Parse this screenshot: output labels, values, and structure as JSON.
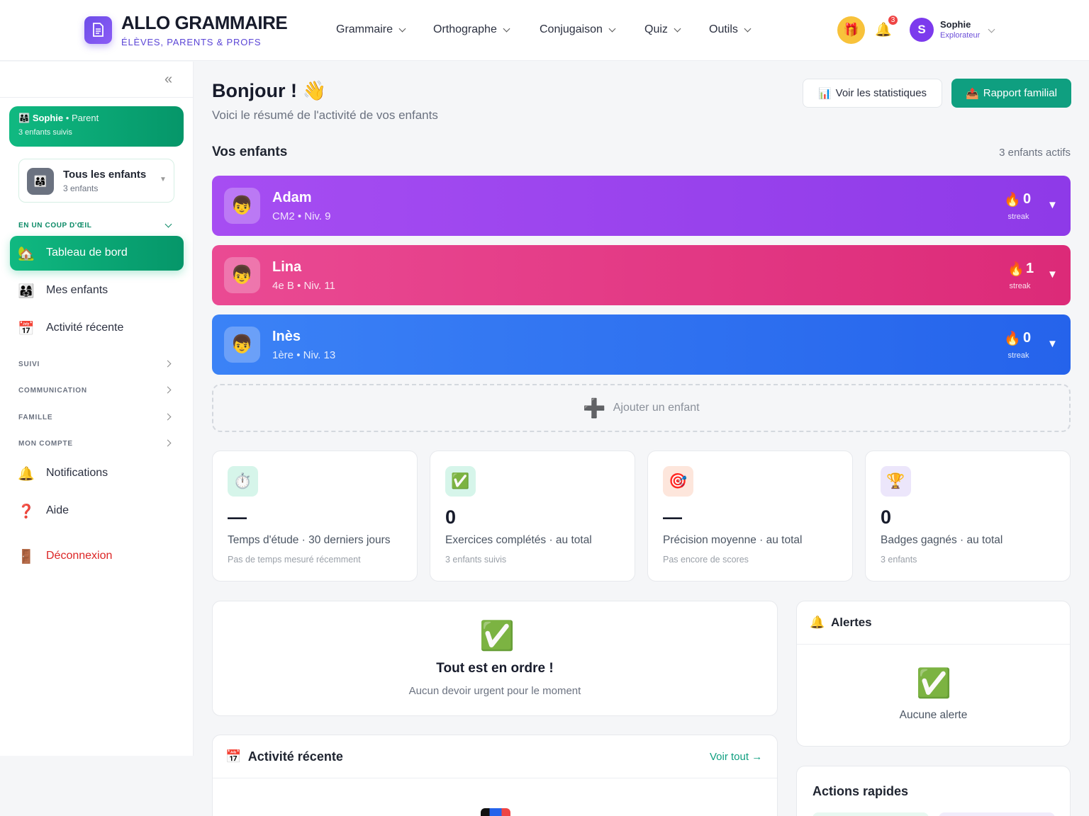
{
  "header": {
    "logo_title": "ALLO GRAMMAIRE",
    "logo_subtitle": "ÉLÈVES, PARENTS & PROFS",
    "nav": [
      "Grammaire",
      "Orthographe",
      "Conjugaison",
      "Quiz",
      "Outils"
    ],
    "notification_count": "3",
    "user_initial": "S",
    "user_name": "Sophie",
    "user_role": "Explorateur"
  },
  "sidebar": {
    "parent_name": "Sophie",
    "parent_role": "• Parent",
    "parent_followed": "3 enfants suivis",
    "child_selector_title": "Tous les enfants",
    "child_selector_sub": "3 enfants",
    "section_glance": "EN UN COUP D'ŒIL",
    "items": [
      {
        "label": "Tableau de bord",
        "icon": "house-icon"
      },
      {
        "label": "Mes enfants",
        "icon": "family-icon"
      },
      {
        "label": "Activité récente",
        "icon": "calendar-icon"
      }
    ],
    "groups": [
      "SUIVI",
      "COMMUNICATION",
      "FAMILLE",
      "MON COMPTE"
    ],
    "notifications": "Notifications",
    "help": "Aide",
    "logout": "Déconnexion"
  },
  "main": {
    "title": "Bonjour ! 👋",
    "subtitle": "Voici le résumé de l'activité de vos enfants",
    "btn_stats": "Voir les statistiques",
    "btn_report": "Rapport familial",
    "children_title": "Vos enfants",
    "children_active": "3 enfants actifs",
    "children": [
      {
        "name": "Adam",
        "level": "CM2 • Niv. 9",
        "streak": "0",
        "streak_label": "streak",
        "color_from": "#a64df2",
        "color_to": "#8e3ae8"
      },
      {
        "name": "Lina",
        "level": "4e B • Niv. 11",
        "streak": "1",
        "streak_label": "streak",
        "color_from": "#ea4a93",
        "color_to": "#dc2a78"
      },
      {
        "name": "Inès",
        "level": "1ère • Niv. 13",
        "streak": "0",
        "streak_label": "streak",
        "color_from": "#3b82f6",
        "color_to": "#2563eb"
      }
    ],
    "add_child": "Ajouter un enfant",
    "stats": [
      {
        "value": "—",
        "label": "Temps d'étude · 30 derniers jours",
        "note": "Pas de temps mesuré récemment",
        "icon": "stopwatch-icon",
        "bg": "#d6f5ea"
      },
      {
        "value": "0",
        "label": "Exercices complétés · au total",
        "note": "3 enfants suivis",
        "icon": "check-icon",
        "bg": "#d6f5ea"
      },
      {
        "value": "—",
        "label": "Précision moyenne · au total",
        "note": "Pas encore de scores",
        "icon": "target-icon",
        "bg": "#fde6dc"
      },
      {
        "value": "0",
        "label": "Badges gagnés · au total",
        "note": "3 enfants",
        "icon": "trophy-icon",
        "bg": "#ece6fb"
      }
    ],
    "order_title": "Tout est en ordre !",
    "order_sub": "Aucun devoir urgent pour le moment",
    "alerts_title": "Alertes",
    "alerts_empty": "Aucune alerte",
    "activity_title": "Activité récente",
    "activity_link": "Voir tout →",
    "quick_title": "Actions rapides"
  }
}
